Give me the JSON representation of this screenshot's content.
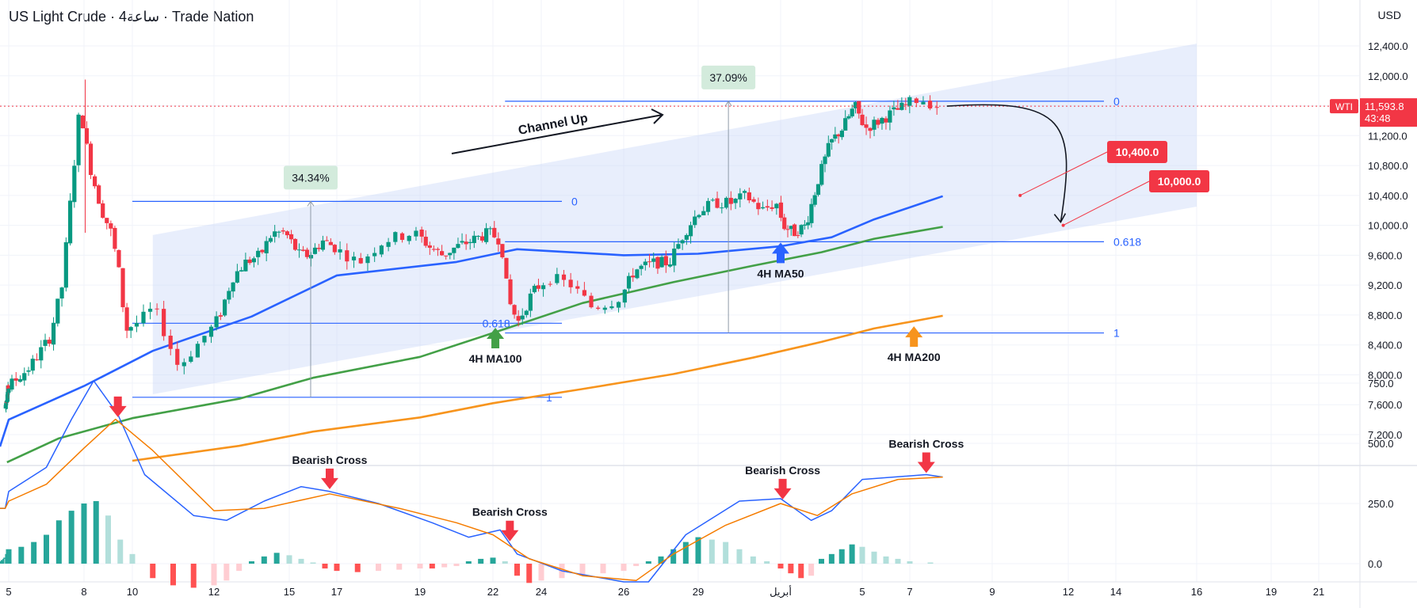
{
  "header": {
    "title": "US Light Crude · 4ساعة · Trade Nation",
    "currency": "USD"
  },
  "colors": {
    "up": "#089981",
    "down": "#f23645",
    "ma50": "#2962ff",
    "ma100": "#43a047",
    "ma200": "#f7941d",
    "fib": "#2962ff",
    "channel": "#c7d6f7",
    "macd": "#2962ff",
    "signal": "#f57c00",
    "label_red": "#f23645"
  },
  "chart_data": [
    {
      "type": "candlestick",
      "ylim": [
        6800,
        12800
      ],
      "y_ticks": [
        "7,200.0",
        "7,600.0",
        "8,000.0",
        "8,400.0",
        "8,800.0",
        "9,200.0",
        "9,600.0",
        "10,000.0",
        "10,400.0",
        "10,800.0",
        "11,200.0",
        "11,600.0",
        "12,000.0",
        "12,400.0"
      ],
      "y_tick_values": [
        7200,
        7600,
        8000,
        8400,
        8800,
        9200,
        9600,
        10000,
        10400,
        10800,
        11200,
        11600,
        12000,
        12400
      ],
      "x_ticks": [
        {
          "label": "5",
          "d": 5
        },
        {
          "label": "8",
          "d": 8
        },
        {
          "label": "10",
          "d": 10
        },
        {
          "label": "12",
          "d": 12
        },
        {
          "label": "15",
          "d": 15
        },
        {
          "label": "17",
          "d": 17
        },
        {
          "label": "19",
          "d": 19
        },
        {
          "label": "22",
          "d": 22
        },
        {
          "label": "24",
          "d": 24
        },
        {
          "label": "26",
          "d": 26
        },
        {
          "label": "29",
          "d": 29
        },
        {
          "label": "أبريل",
          "d": 32
        },
        {
          "label": "5",
          "d": 36
        },
        {
          "label": "7",
          "d": 38
        },
        {
          "label": "9",
          "d": 40
        },
        {
          "label": "12",
          "d": 43
        },
        {
          "label": "14",
          "d": 45
        },
        {
          "label": "16",
          "d": 47
        },
        {
          "label": "19",
          "d": 50
        },
        {
          "label": "21",
          "d": 52
        }
      ],
      "price_label": {
        "symbol": "WTI",
        "value": "11,593.8",
        "countdown": "43:48",
        "price": 11594
      },
      "annotations": {
        "channel_text": "Channel Up",
        "rise1": "34.34%",
        "rise2": "37.09%",
        "ma50_label": "4H MA50",
        "ma100_label": "4H MA100",
        "ma200_label": "4H MA200",
        "target1": "10,400.0",
        "target2": "10,000.0",
        "fib_left": {
          "zero": "0",
          "p618": "0.618",
          "one": "1"
        },
        "fib_right": {
          "zero": "0",
          "p618": "0.618",
          "one": "1"
        }
      },
      "anchors": [
        {
          "d": 3.3,
          "v": 7550
        },
        {
          "d": 4.0,
          "v": 7700
        },
        {
          "d": 5.0,
          "v": 7800
        },
        {
          "d": 6.0,
          "v": 8100
        },
        {
          "d": 6.8,
          "v": 8500
        },
        {
          "d": 7.3,
          "v": 9200
        },
        {
          "d": 8.0,
          "v": 11600
        },
        {
          "d": 8.4,
          "v": 10800
        },
        {
          "d": 8.9,
          "v": 10200
        },
        {
          "d": 9.3,
          "v": 9900
        },
        {
          "d": 9.6,
          "v": 9400
        },
        {
          "d": 9.9,
          "v": 8600
        },
        {
          "d": 10.3,
          "v": 8700
        },
        {
          "d": 10.7,
          "v": 8900
        },
        {
          "d": 11.0,
          "v": 8500
        },
        {
          "d": 11.3,
          "v": 8100
        },
        {
          "d": 11.9,
          "v": 8500
        },
        {
          "d": 12.4,
          "v": 8800
        },
        {
          "d": 12.9,
          "v": 9300
        },
        {
          "d": 13.4,
          "v": 9500
        },
        {
          "d": 14.0,
          "v": 9600
        },
        {
          "d": 14.5,
          "v": 9900
        },
        {
          "d": 15.0,
          "v": 9900
        },
        {
          "d": 15.6,
          "v": 9600
        },
        {
          "d": 16.0,
          "v": 9600
        },
        {
          "d": 16.6,
          "v": 9800
        },
        {
          "d": 17.1,
          "v": 9700
        },
        {
          "d": 17.7,
          "v": 9500
        },
        {
          "d": 18.3,
          "v": 9800
        },
        {
          "d": 19.0,
          "v": 9900
        },
        {
          "d": 19.6,
          "v": 9700
        },
        {
          "d": 20.1,
          "v": 9600
        },
        {
          "d": 20.6,
          "v": 9700
        },
        {
          "d": 21.3,
          "v": 9800
        },
        {
          "d": 22.0,
          "v": 9900
        },
        {
          "d": 22.5,
          "v": 9800
        },
        {
          "d": 22.8,
          "v": 9000
        },
        {
          "d": 23.2,
          "v": 8700
        },
        {
          "d": 23.8,
          "v": 9100
        },
        {
          "d": 24.4,
          "v": 9300
        },
        {
          "d": 24.9,
          "v": 9200
        },
        {
          "d": 25.4,
          "v": 8900
        },
        {
          "d": 26.0,
          "v": 9000
        },
        {
          "d": 26.6,
          "v": 9400
        },
        {
          "d": 27.4,
          "v": 9500
        },
        {
          "d": 28.0,
          "v": 9500
        },
        {
          "d": 28.6,
          "v": 9900
        },
        {
          "d": 29.2,
          "v": 10200
        },
        {
          "d": 29.8,
          "v": 10300
        },
        {
          "d": 30.4,
          "v": 10300
        },
        {
          "d": 30.9,
          "v": 10400
        },
        {
          "d": 31.5,
          "v": 10200
        },
        {
          "d": 32.0,
          "v": 10300
        },
        {
          "d": 32.3,
          "v": 10000
        },
        {
          "d": 32.8,
          "v": 9900
        },
        {
          "d": 33.4,
          "v": 10000
        },
        {
          "d": 34.0,
          "v": 10600
        },
        {
          "d": 34.6,
          "v": 11100
        },
        {
          "d": 35.2,
          "v": 11300
        },
        {
          "d": 35.8,
          "v": 11600
        },
        {
          "d": 36.3,
          "v": 11300
        },
        {
          "d": 36.9,
          "v": 11400
        },
        {
          "d": 37.4,
          "v": 11500
        },
        {
          "d": 38.0,
          "v": 11600
        },
        {
          "d": 38.4,
          "v": 11700
        },
        {
          "d": 38.8,
          "v": 11600
        }
      ],
      "moving_averages": [
        {
          "name": "4H MA50",
          "color": "#2962ff",
          "points": [
            [
              0,
              7040
            ],
            [
              5,
              7400
            ],
            [
              8,
              7850
            ],
            [
              10.5,
              8320
            ],
            [
              13.5,
              8780
            ],
            [
              17,
              9330
            ],
            [
              20.5,
              9510
            ],
            [
              23,
              9680
            ],
            [
              26,
              9600
            ],
            [
              29,
              9620
            ],
            [
              32,
              9720
            ],
            [
              34.5,
              9840
            ],
            [
              36.5,
              10080
            ],
            [
              38.8,
              10390
            ]
          ]
        },
        {
          "name": "4H MA100",
          "color": "#43a047",
          "points": [
            [
              4,
              6830
            ],
            [
              7,
              7150
            ],
            [
              10,
              7420
            ],
            [
              13,
              7680
            ],
            [
              16,
              7960
            ],
            [
              19,
              8240
            ],
            [
              22,
              8560
            ],
            [
              25,
              8960
            ],
            [
              28,
              9240
            ],
            [
              31,
              9460
            ],
            [
              34,
              9640
            ],
            [
              36.5,
              9820
            ],
            [
              38.8,
              9980
            ]
          ]
        },
        {
          "name": "4H MA200",
          "color": "#f7941d",
          "points": [
            [
              10,
              6850
            ],
            [
              13,
              7050
            ],
            [
              16,
              7240
            ],
            [
              19,
              7430
            ],
            [
              22,
              7620
            ],
            [
              25,
              7810
            ],
            [
              28,
              8010
            ],
            [
              31,
              8230
            ],
            [
              34,
              8440
            ],
            [
              36.5,
              8620
            ],
            [
              38.8,
              8790
            ]
          ]
        }
      ],
      "channel": {
        "points": [
          [
            10.5,
            9870
          ],
          [
            47,
            12430
          ],
          [
            47,
            10250
          ],
          [
            10.5,
            7740
          ]
        ]
      },
      "fib_left": {
        "d0": 10,
        "d1": 24.5,
        "level0": 10320,
        "level618": 8690,
        "level1": 7700
      },
      "fib_right": {
        "d0": 22.5,
        "d1": 44.5,
        "level0": 11660,
        "level618": 9780,
        "level1": 8560
      },
      "targets": [
        10400,
        10000
      ]
    },
    {
      "type": "macd",
      "ylim": [
        -80,
        800
      ],
      "y_ticks": [
        "750.0",
        "500.0",
        "250.0",
        "0.0"
      ],
      "y_tick_values": [
        750,
        500,
        250,
        0
      ],
      "cross_label": "Bearish Cross",
      "crosses": [
        9.4,
        16.7,
        22.7,
        32.1,
        38.4
      ],
      "macd": [
        [
          0,
          230
        ],
        [
          3,
          230
        ],
        [
          5,
          300
        ],
        [
          6.5,
          400
        ],
        [
          7.5,
          600
        ],
        [
          8.4,
          760
        ],
        [
          9.4,
          620
        ],
        [
          10.3,
          370
        ],
        [
          11.5,
          200
        ],
        [
          12.5,
          180
        ],
        [
          14,
          260
        ],
        [
          15.5,
          320
        ],
        [
          16.7,
          300
        ],
        [
          18,
          250
        ],
        [
          19.5,
          170
        ],
        [
          21,
          110
        ],
        [
          22.3,
          140
        ],
        [
          23,
          40
        ],
        [
          24.5,
          -30
        ],
        [
          26,
          -80
        ],
        [
          27,
          -80
        ],
        [
          28.5,
          120
        ],
        [
          30.5,
          260
        ],
        [
          32,
          270
        ],
        [
          33.5,
          180
        ],
        [
          34.5,
          220
        ],
        [
          36,
          350
        ],
        [
          38.4,
          370
        ],
        [
          38.8,
          360
        ]
      ],
      "signal": [
        [
          0,
          230
        ],
        [
          3,
          230
        ],
        [
          5,
          260
        ],
        [
          6.5,
          330
        ],
        [
          8,
          480
        ],
        [
          9.3,
          600
        ],
        [
          10.5,
          470
        ],
        [
          12,
          220
        ],
        [
          14,
          230
        ],
        [
          16.7,
          290
        ],
        [
          18.5,
          230
        ],
        [
          20.5,
          170
        ],
        [
          22,
          120
        ],
        [
          23.5,
          20
        ],
        [
          25,
          -50
        ],
        [
          26.5,
          -70
        ],
        [
          28,
          40
        ],
        [
          30,
          160
        ],
        [
          32,
          250
        ],
        [
          33.8,
          200
        ],
        [
          35.5,
          290
        ],
        [
          37.5,
          350
        ],
        [
          38.8,
          360
        ]
      ],
      "histogram": [
        [
          1.5,
          10
        ],
        [
          2,
          15
        ],
        [
          2.5,
          15
        ],
        [
          3,
          20
        ],
        [
          3.5,
          25
        ],
        [
          4,
          20
        ],
        [
          4.5,
          40
        ],
        [
          5,
          60
        ],
        [
          5.5,
          70
        ],
        [
          6,
          90
        ],
        [
          6.5,
          120
        ],
        [
          7,
          180
        ],
        [
          7.5,
          220
        ],
        [
          8,
          250
        ],
        [
          8.5,
          260
        ],
        [
          9,
          200
        ],
        [
          9.5,
          100
        ],
        [
          10,
          40
        ],
        [
          10.5,
          -60
        ],
        [
          11,
          -90
        ],
        [
          11.5,
          -100
        ],
        [
          12,
          -90
        ],
        [
          12.5,
          -70
        ],
        [
          13,
          -30
        ],
        [
          13.5,
          10
        ],
        [
          14,
          30
        ],
        [
          14.5,
          45
        ],
        [
          15,
          35
        ],
        [
          15.5,
          20
        ],
        [
          16,
          5
        ],
        [
          16.5,
          -20
        ],
        [
          17,
          -30
        ],
        [
          17.5,
          -35
        ],
        [
          18,
          -30
        ],
        [
          18.5,
          -25
        ],
        [
          19,
          -20
        ],
        [
          19.5,
          -20
        ],
        [
          20,
          -15
        ],
        [
          20.5,
          -10
        ],
        [
          21,
          10
        ],
        [
          21.5,
          20
        ],
        [
          22,
          25
        ],
        [
          22.5,
          10
        ],
        [
          23,
          -50
        ],
        [
          23.5,
          -80
        ],
        [
          24,
          -70
        ],
        [
          24.5,
          -60
        ],
        [
          25,
          -50
        ],
        [
          25.5,
          -40
        ],
        [
          26,
          -30
        ],
        [
          26.5,
          -10
        ],
        [
          27,
          10
        ],
        [
          27.5,
          30
        ],
        [
          28,
          60
        ],
        [
          28.5,
          90
        ],
        [
          29,
          110
        ],
        [
          29.5,
          100
        ],
        [
          30,
          90
        ],
        [
          30.5,
          60
        ],
        [
          31,
          30
        ],
        [
          31.5,
          10
        ],
        [
          32,
          -20
        ],
        [
          32.5,
          -40
        ],
        [
          33,
          -60
        ],
        [
          33.5,
          -50
        ],
        [
          34,
          20
        ],
        [
          34.5,
          40
        ],
        [
          35,
          60
        ],
        [
          35.5,
          80
        ],
        [
          36,
          70
        ],
        [
          36.5,
          50
        ],
        [
          37,
          30
        ],
        [
          37.5,
          20
        ],
        [
          38,
          10
        ],
        [
          38.5,
          5
        ]
      ]
    }
  ]
}
